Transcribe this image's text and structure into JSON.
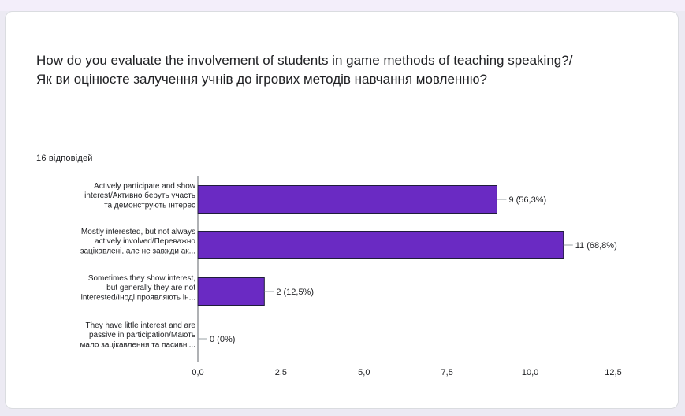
{
  "question": {
    "title": "How do you evaluate the involvement of students in game methods of teaching speaking?/Як ви оцінюєте залучення учнів до ігрових методів навчання мовленню?",
    "response_count": "16 відповідей"
  },
  "colors": {
    "bar": "#6a2ac3",
    "axis": "#5f6368",
    "text": "#202124"
  },
  "chart_data": {
    "type": "bar",
    "orientation": "horizontal",
    "categories": [
      [
        "Actively participate and show",
        "interest/Активно беруть участь",
        "та демонструють інтерес"
      ],
      [
        "Mostly interested, but not always",
        "actively involved/Переважно",
        "зацікавлені, але не завжди ак..."
      ],
      [
        "Sometimes they show interest,",
        "but generally they are not",
        "interested/Іноді проявляють ін..."
      ],
      [
        "They have little interest and are",
        "passive in participation/Мають",
        "мало зацікавлення та пасивні..."
      ]
    ],
    "values": [
      9,
      11,
      2,
      0
    ],
    "data_labels": [
      "9 (56,3%)",
      "11 (68,8%)",
      "2 (12,5%)",
      "0 (0%)"
    ],
    "xlim": [
      0,
      12.5
    ],
    "xticks": [
      "0,0",
      "2,5",
      "5,0",
      "7,5",
      "10,0",
      "12,5"
    ],
    "grid": false,
    "legend": "none"
  }
}
